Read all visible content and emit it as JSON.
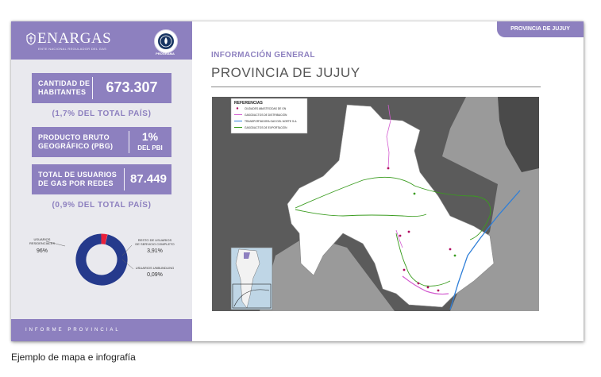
{
  "header": {
    "logo_text": "ENARGAS",
    "logo_subtext": "ENTE NACIONAL REGULADOR DEL GAS",
    "program_badge_label": "PROGRAMA",
    "province_tab": "PROVINCIA DE JUJUY"
  },
  "stats": [
    {
      "label_line1": "CANTIDAD DE",
      "label_line2": "HABITANTES",
      "value": "673.307",
      "value_suffix": ""
    },
    {
      "label_line1": "PRODUCTO BRUTO",
      "label_line2": "GEOGRÁFICO (PBG)",
      "value": "1%",
      "value_suffix": "DEL PBI"
    },
    {
      "label_line1": "TOTAL DE USUARIOS",
      "label_line2": "DE GAS POR REDES",
      "value": "87.449",
      "value_suffix": ""
    }
  ],
  "stat_notes": {
    "population_share": "(1,7% DEL TOTAL PAÍS)",
    "users_share": "(0,9% DEL TOTAL PAÍS)"
  },
  "donut": {
    "segments": [
      {
        "label_line1": "USUARIOS",
        "label_line2": "RESIDENCIALES",
        "display": "96%",
        "value": 96.0,
        "color": "#253a8c"
      },
      {
        "label_line1": "RESTO DE USUARIOS",
        "label_line2": "DE SERVICIO COMPLETO",
        "display": "3,91%",
        "value": 3.91,
        "color": "#e8203a"
      },
      {
        "label_line1": "USUARIOS UNBUNDLING",
        "label_line2": "",
        "display": "0,09%",
        "value": 0.09,
        "color": "#f2a7b3"
      }
    ]
  },
  "footer": {
    "label": "INFORME PROVINCIAL"
  },
  "main": {
    "section_title": "INFORMACIÓN GENERAL",
    "province_title": "PROVINCIA DE JUJUY"
  },
  "map": {
    "legend_title": "REFERENCIAS",
    "legend_items": [
      {
        "label": "CIUDADES ABASTECIDAS DE GN",
        "color": "#b0005e",
        "style": "dot"
      },
      {
        "label": "GASODUCTOS DE DISTRIBUCIÓN",
        "color": "#d35bd0",
        "style": "line"
      },
      {
        "label": "TRANSPORTADORA GAS DEL NORTE S.A.",
        "color": "#2f7fd8",
        "style": "line"
      },
      {
        "label": "GASODUCTOS DE EXPORTACIÓN",
        "color": "#3a9c1f",
        "style": "line"
      }
    ]
  },
  "caption": "Ejemplo de mapa e infografía"
}
